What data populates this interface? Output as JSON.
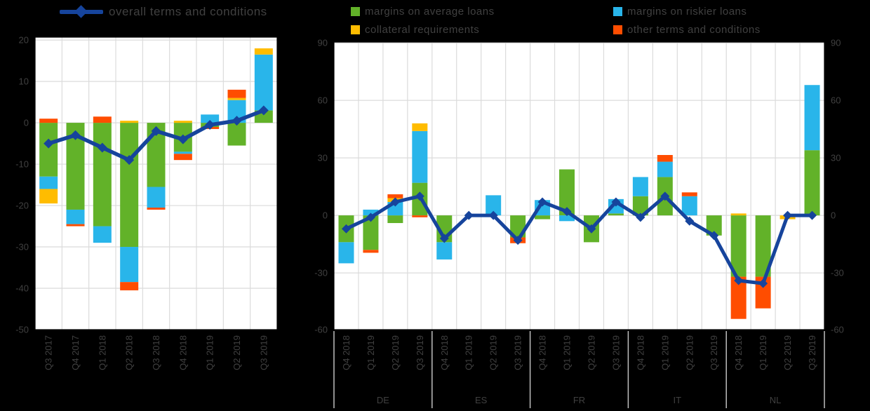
{
  "page": {
    "background": "#000000",
    "plot_background": "#FFFFFF",
    "grid_color": "#DBDBDB",
    "separator_color": "#BFBFBF",
    "border_color": "#000000",
    "text_color": "#404040"
  },
  "legend_line": {
    "label": "overall terms and conditions",
    "color": "#16449C"
  },
  "legend_series": {
    "items": [
      {
        "label": "margins on average loans",
        "color": "#62B229"
      },
      {
        "label": "margins on riskier loans",
        "color": "#29B5EA"
      },
      {
        "label": "collateral requirements",
        "color": "#FFBC00"
      },
      {
        "label": "other terms and conditions",
        "color": "#FF4D00"
      }
    ]
  },
  "chart_data": [
    {
      "type": "bar",
      "subtype": "stacked-bar-with-line",
      "title": "",
      "categories": [
        "Q3 2017",
        "Q4 2017",
        "Q1 2018",
        "Q2 2018",
        "Q3 2018",
        "Q4 2018",
        "Q1 2019",
        "Q2 2019",
        "Q3 2019"
      ],
      "series": [
        {
          "name": "margins on average loans",
          "color": "#62B229",
          "values": [
            -13,
            -21,
            -25,
            -30,
            -15.5,
            -7,
            -1,
            -5.5,
            3
          ]
        },
        {
          "name": "margins on riskier loans",
          "color": "#29B5EA",
          "values": [
            -3,
            -3.5,
            -4,
            -8.5,
            -5,
            -0.5,
            2,
            5.5,
            13.5
          ]
        },
        {
          "name": "collateral requirements",
          "color": "#FFBC00",
          "values": [
            -3.5,
            0,
            0,
            0.5,
            0,
            0.5,
            0,
            0.5,
            1.5
          ]
        },
        {
          "name": "other terms and conditions",
          "color": "#FF4D00",
          "values": [
            1,
            -0.5,
            1.5,
            -2,
            -0.5,
            -1.5,
            -0.5,
            2,
            0
          ]
        }
      ],
      "line_series": {
        "name": "overall terms and conditions",
        "color": "#16449C",
        "values": [
          -5,
          -3,
          -6,
          -9,
          -2,
          -4,
          -0.5,
          0.5,
          3
        ]
      },
      "yticks": [
        20,
        10,
        0,
        -10,
        -20,
        -30,
        -40,
        -50
      ],
      "ylim": [
        -50,
        20.7
      ],
      "y_axis_side": "left",
      "grid": true,
      "legend_position": "top"
    },
    {
      "type": "bar",
      "subtype": "stacked-bar-with-line-grouped",
      "title": "",
      "group_labels": [
        "DE",
        "ES",
        "FR",
        "IT",
        "NL"
      ],
      "categories": [
        "Q4 2018",
        "Q1 2019",
        "Q2 2019",
        "Q3 2019",
        "Q4 2018",
        "Q1 2019",
        "Q2 2019",
        "Q3 2019",
        "Q4 2018",
        "Q1 2019",
        "Q2 2019",
        "Q3 2019",
        "Q4 2018",
        "Q1 2019",
        "Q2 2019",
        "Q3 2019",
        "Q4 2018",
        "Q1 2019",
        "Q2 2019",
        "Q3 2019"
      ],
      "series": [
        {
          "name": "margins on average loans",
          "color": "#62B229",
          "values": [
            -14,
            -18,
            -4,
            17,
            -14,
            0,
            0,
            -11.5,
            -2,
            24,
            -14,
            1,
            10,
            20,
            0,
            -10.5,
            -32,
            -32,
            0,
            34
          ]
        },
        {
          "name": "margins on riskier loans",
          "color": "#29B5EA",
          "values": [
            -11,
            3,
            7,
            27,
            -9,
            0,
            10.5,
            0,
            8,
            -3,
            0,
            7.5,
            10,
            8,
            10,
            0,
            0,
            0,
            0,
            34
          ]
        },
        {
          "name": "collateral requirements",
          "color": "#FFBC00",
          "values": [
            0,
            0,
            2,
            4,
            0,
            0,
            0,
            0,
            0,
            0,
            0,
            0,
            0,
            0,
            0,
            0,
            1,
            0,
            -2,
            0
          ]
        },
        {
          "name": "other terms and conditions",
          "color": "#FF4D00",
          "values": [
            0,
            -1.5,
            2,
            -1,
            0,
            0,
            0,
            -3,
            0,
            0,
            0,
            0,
            0,
            3.5,
            2,
            0,
            -22,
            -16.5,
            0,
            0
          ]
        }
      ],
      "line_series": {
        "name": "overall terms and conditions",
        "color": "#16449C",
        "values": [
          -7,
          -1,
          7,
          10,
          -12,
          0,
          0,
          -13,
          7,
          2,
          -7,
          7,
          -1,
          10,
          -3,
          -10.5,
          -34,
          -35.5,
          0,
          0
        ]
      },
      "yticks": [
        90,
        60,
        30,
        0,
        -30,
        -60
      ],
      "ylim": [
        -59.6,
        90.4
      ],
      "y_axis_side": "both",
      "grid": true,
      "legend_position": "top"
    }
  ]
}
